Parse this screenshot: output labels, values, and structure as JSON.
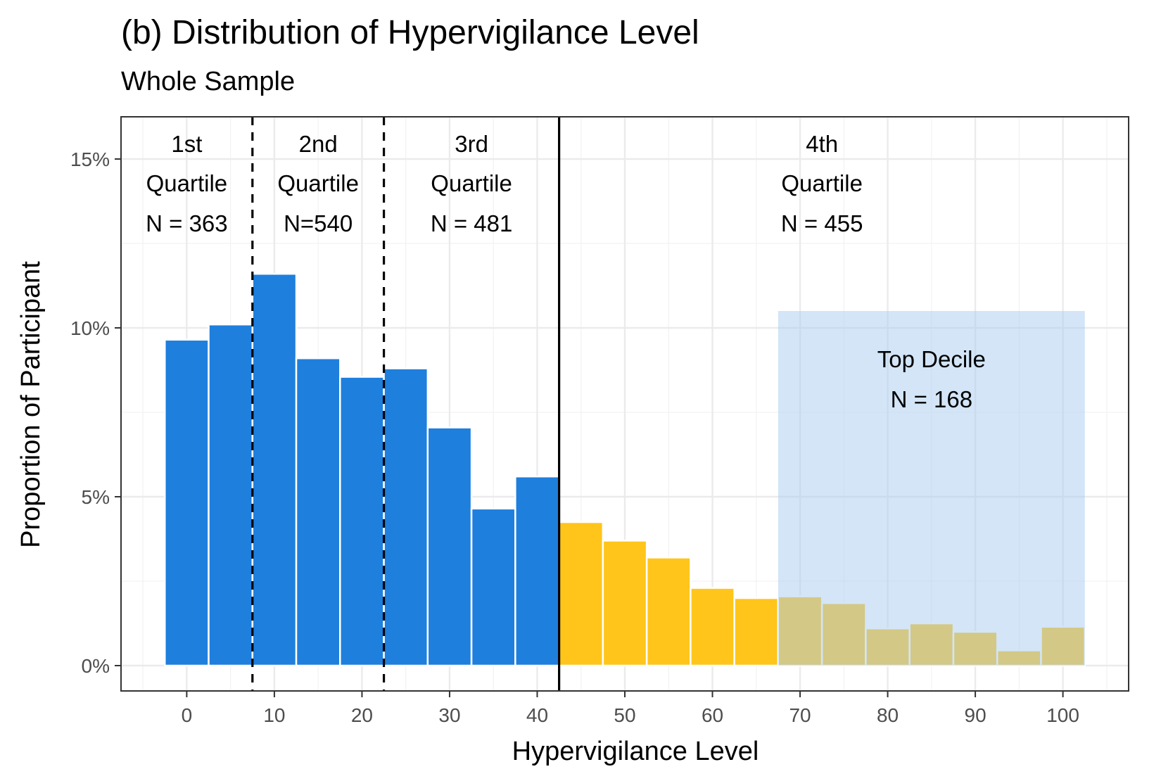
{
  "chart_data": {
    "type": "bar",
    "title": "(b) Distribution of Hypervigilance Level",
    "subtitle": "Whole Sample",
    "xlabel": "Hypervigilance Level",
    "ylabel": "Proportion of Participant",
    "xlim": [
      -7.5,
      107.5
    ],
    "ylim": [
      -0.0075,
      0.1625
    ],
    "x_ticks": [
      0,
      10,
      20,
      30,
      40,
      50,
      60,
      70,
      80,
      90,
      100
    ],
    "y_ticks": [
      0,
      0.05,
      0.1,
      0.15
    ],
    "y_tick_labels": [
      "0%",
      "5%",
      "10%",
      "15%"
    ],
    "bin_width": 5,
    "bars": [
      {
        "x": 0,
        "value": 0.0965
      },
      {
        "x": 5,
        "value": 0.101
      },
      {
        "x": 10,
        "value": 0.116
      },
      {
        "x": 15,
        "value": 0.091
      },
      {
        "x": 20,
        "value": 0.0855
      },
      {
        "x": 25,
        "value": 0.088
      },
      {
        "x": 30,
        "value": 0.0705
      },
      {
        "x": 35,
        "value": 0.0465
      },
      {
        "x": 40,
        "value": 0.056
      },
      {
        "x": 45,
        "value": 0.0425
      },
      {
        "x": 50,
        "value": 0.037
      },
      {
        "x": 55,
        "value": 0.032
      },
      {
        "x": 60,
        "value": 0.023
      },
      {
        "x": 65,
        "value": 0.02
      },
      {
        "x": 70,
        "value": 0.0205
      },
      {
        "x": 75,
        "value": 0.0185
      },
      {
        "x": 80,
        "value": 0.011
      },
      {
        "x": 85,
        "value": 0.0125
      },
      {
        "x": 90,
        "value": 0.01
      },
      {
        "x": 95,
        "value": 0.0045
      },
      {
        "x": 100,
        "value": 0.0115
      }
    ],
    "quartile_cut_dashed": [
      7.5,
      22.5
    ],
    "quartile_cut_solid": 42.5,
    "color_low": "#1E7FDD",
    "color_high": "#FFC51A",
    "top_decile_band": {
      "x_from": 67.5,
      "x_to": 102.5,
      "y_to": 0.105,
      "color": "#A7CBF0"
    },
    "annotations": [
      {
        "x": 0,
        "y_level": 1,
        "text": "1st"
      },
      {
        "x": 0,
        "y_level": 2,
        "text": "Quartile"
      },
      {
        "x": 0,
        "y_level": 3,
        "text": "N = 363"
      },
      {
        "x": 15,
        "y_level": 1,
        "text": "2nd"
      },
      {
        "x": 15,
        "y_level": 2,
        "text": "Quartile"
      },
      {
        "x": 15,
        "y_level": 3,
        "text": "N=540"
      },
      {
        "x": 32.5,
        "y_level": 1,
        "text": "3rd"
      },
      {
        "x": 32.5,
        "y_level": 2,
        "text": "Quartile"
      },
      {
        "x": 32.5,
        "y_level": 3,
        "text": "N = 481"
      },
      {
        "x": 72.5,
        "y_level": 1,
        "text": "4th"
      },
      {
        "x": 72.5,
        "y_level": 2,
        "text": "Quartile"
      },
      {
        "x": 72.5,
        "y_level": 3,
        "text": "N = 455"
      }
    ],
    "top_decile_label": [
      "Top Decile",
      "N = 168"
    ],
    "grid": true
  }
}
